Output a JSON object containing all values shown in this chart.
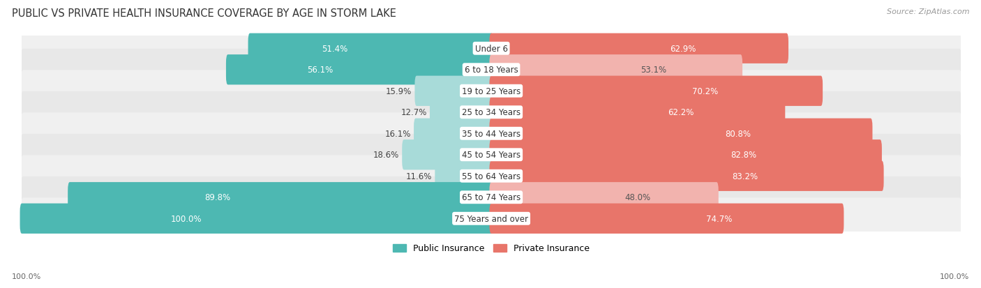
{
  "title": "PUBLIC VS PRIVATE HEALTH INSURANCE COVERAGE BY AGE IN STORM LAKE",
  "source": "Source: ZipAtlas.com",
  "categories": [
    "Under 6",
    "6 to 18 Years",
    "19 to 25 Years",
    "25 to 34 Years",
    "35 to 44 Years",
    "45 to 54 Years",
    "55 to 64 Years",
    "65 to 74 Years",
    "75 Years and over"
  ],
  "public_values": [
    51.4,
    56.1,
    15.9,
    12.7,
    16.1,
    18.6,
    11.6,
    89.8,
    100.0
  ],
  "private_values": [
    62.9,
    53.1,
    70.2,
    62.2,
    80.8,
    82.8,
    83.2,
    48.0,
    74.7
  ],
  "public_color": "#4db8b2",
  "private_color": "#e8756a",
  "public_color_light": "#a8dbd9",
  "private_color_light": "#f2b3ae",
  "row_bg_even": "#f0f0f0",
  "row_bg_odd": "#e8e8e8",
  "title_fontsize": 10.5,
  "label_fontsize": 8.5,
  "value_fontsize": 8.5,
  "legend_fontsize": 9,
  "source_fontsize": 8,
  "max_value": 100.0,
  "public_threshold": 50,
  "private_threshold": 60
}
